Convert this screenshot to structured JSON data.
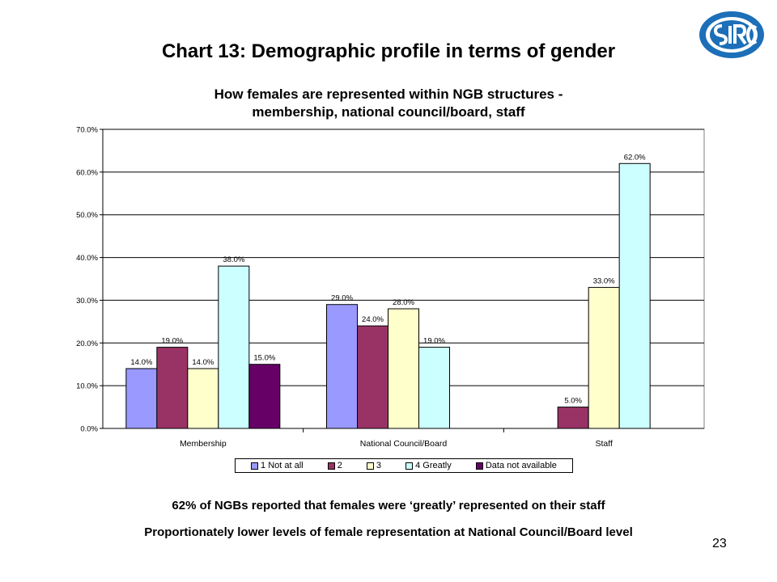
{
  "slide": {
    "title": "Chart 13: Demographic profile in terms of gender",
    "notes": [
      "62% of NGBs reported that females were ‘greatly’ represented on their staff",
      "Proportionately lower levels of female representation at National Council/Board level"
    ],
    "page_number": "23"
  },
  "logo": {
    "name": "sirc-logo-icon",
    "color": "#1c6fb8"
  },
  "chart_data": {
    "type": "bar",
    "title_lines": [
      "How females are represented within NGB structures -",
      "membership, national council/board, staff"
    ],
    "categories": [
      "Membership",
      "National Council/Board",
      "Staff"
    ],
    "series": [
      {
        "name": "1 Not at all",
        "color": "#9999ff",
        "values": [
          14.0,
          29.0,
          null
        ]
      },
      {
        "name": "2",
        "color": "#993366",
        "values": [
          19.0,
          24.0,
          5.0
        ]
      },
      {
        "name": "3",
        "color": "#ffffcc",
        "values": [
          14.0,
          28.0,
          33.0
        ]
      },
      {
        "name": "4 Greatly",
        "color": "#ccffff",
        "values": [
          38.0,
          19.0,
          62.0
        ]
      },
      {
        "name": "Data not available",
        "color": "#660066",
        "values": [
          15.0,
          null,
          null
        ]
      }
    ],
    "y_ticks": [
      "0.0%",
      "10.0%",
      "20.0%",
      "30.0%",
      "40.0%",
      "50.0%",
      "60.0%",
      "70.0%"
    ],
    "ylim": [
      0,
      70
    ],
    "grid": true,
    "legend_position": "bottom"
  }
}
